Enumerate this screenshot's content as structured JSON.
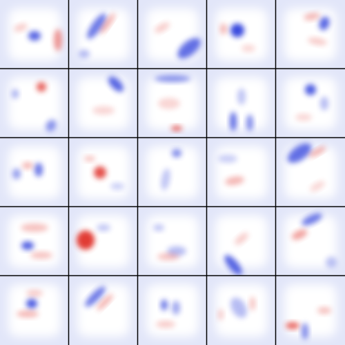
{
  "tiles": {
    "rows": 5,
    "columns": 5
  }
}
